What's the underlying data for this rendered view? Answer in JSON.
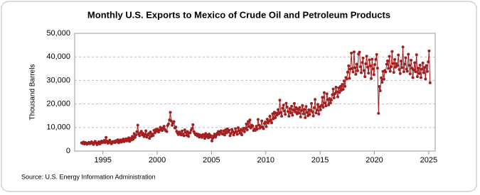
{
  "chart_data": {
    "type": "line",
    "title": "Monthly U.S. Exports to Mexico of Crude Oil and Petroleum Products",
    "y_label": "Thousand Barrels",
    "source": "Source: U.S. Energy Information Administration",
    "color": "#a31f1f",
    "grid": true,
    "xlim": [
      1992.4,
      2025.6
    ],
    "xticks": [
      1995,
      2000,
      2005,
      2010,
      2015,
      2020,
      2025
    ],
    "ylim": [
      0,
      50000
    ],
    "yticks": [
      0,
      {
        "value": 10000,
        "label": "10,000"
      },
      {
        "value": 20000,
        "label": "20,000"
      },
      {
        "value": 30000,
        "label": "30,000"
      },
      {
        "value": 40000,
        "label": "40,000"
      },
      {
        "value": 50000,
        "label": "50,000"
      }
    ],
    "x": [
      1993.04,
      1993.13,
      1993.21,
      1993.29,
      1993.38,
      1993.46,
      1993.54,
      1993.63,
      1993.71,
      1993.79,
      1993.88,
      1993.96,
      1994.04,
      1994.13,
      1994.21,
      1994.29,
      1994.38,
      1994.46,
      1994.54,
      1994.63,
      1994.71,
      1994.79,
      1994.88,
      1994.96,
      1995.04,
      1995.13,
      1995.21,
      1995.29,
      1995.38,
      1995.46,
      1995.54,
      1995.63,
      1995.71,
      1995.79,
      1995.88,
      1995.96,
      1996.04,
      1996.13,
      1996.21,
      1996.29,
      1996.38,
      1996.46,
      1996.54,
      1996.63,
      1996.71,
      1996.79,
      1996.88,
      1996.96,
      1997.04,
      1997.13,
      1997.21,
      1997.29,
      1997.38,
      1997.46,
      1997.54,
      1997.63,
      1997.71,
      1997.79,
      1997.88,
      1997.96,
      1998.04,
      1998.13,
      1998.21,
      1998.29,
      1998.38,
      1998.46,
      1998.54,
      1998.63,
      1998.71,
      1998.79,
      1998.88,
      1998.96,
      1999.04,
      1999.13,
      1999.21,
      1999.29,
      1999.38,
      1999.46,
      1999.54,
      1999.63,
      1999.71,
      1999.79,
      1999.88,
      1999.96,
      2000.04,
      2000.13,
      2000.21,
      2000.29,
      2000.38,
      2000.46,
      2000.54,
      2000.63,
      2000.71,
      2000.79,
      2000.88,
      2000.96,
      2001.04,
      2001.13,
      2001.21,
      2001.29,
      2001.38,
      2001.46,
      2001.54,
      2001.63,
      2001.71,
      2001.79,
      2001.88,
      2001.96,
      2002.04,
      2002.13,
      2002.21,
      2002.29,
      2002.38,
      2002.46,
      2002.54,
      2002.63,
      2002.71,
      2002.79,
      2002.88,
      2002.96,
      2003.04,
      2003.13,
      2003.21,
      2003.29,
      2003.38,
      2003.46,
      2003.54,
      2003.63,
      2003.71,
      2003.79,
      2003.88,
      2003.96,
      2004.04,
      2004.13,
      2004.21,
      2004.29,
      2004.38,
      2004.46,
      2004.54,
      2004.63,
      2004.71,
      2004.79,
      2004.88,
      2004.96,
      2005.04,
      2005.13,
      2005.21,
      2005.29,
      2005.38,
      2005.46,
      2005.54,
      2005.63,
      2005.71,
      2005.79,
      2005.88,
      2005.96,
      2006.04,
      2006.13,
      2006.21,
      2006.29,
      2006.38,
      2006.46,
      2006.54,
      2006.63,
      2006.71,
      2006.79,
      2006.88,
      2006.96,
      2007.04,
      2007.13,
      2007.21,
      2007.29,
      2007.38,
      2007.46,
      2007.54,
      2007.63,
      2007.71,
      2007.79,
      2007.88,
      2007.96,
      2008.04,
      2008.13,
      2008.21,
      2008.29,
      2008.38,
      2008.46,
      2008.54,
      2008.63,
      2008.71,
      2008.79,
      2008.88,
      2008.96,
      2009.04,
      2009.13,
      2009.21,
      2009.29,
      2009.38,
      2009.46,
      2009.54,
      2009.63,
      2009.71,
      2009.79,
      2009.88,
      2009.96,
      2010.04,
      2010.13,
      2010.21,
      2010.29,
      2010.38,
      2010.46,
      2010.54,
      2010.63,
      2010.71,
      2010.79,
      2010.88,
      2010.96,
      2011.04,
      2011.13,
      2011.21,
      2011.29,
      2011.38,
      2011.46,
      2011.54,
      2011.63,
      2011.71,
      2011.79,
      2011.88,
      2011.96,
      2012.04,
      2012.13,
      2012.21,
      2012.29,
      2012.38,
      2012.46,
      2012.54,
      2012.63,
      2012.71,
      2012.79,
      2012.88,
      2012.96,
      2013.04,
      2013.13,
      2013.21,
      2013.29,
      2013.38,
      2013.46,
      2013.54,
      2013.63,
      2013.71,
      2013.79,
      2013.88,
      2013.96,
      2014.04,
      2014.13,
      2014.21,
      2014.29,
      2014.38,
      2014.46,
      2014.54,
      2014.63,
      2014.71,
      2014.79,
      2014.88,
      2014.96,
      2015.04,
      2015.13,
      2015.21,
      2015.29,
      2015.38,
      2015.46,
      2015.54,
      2015.63,
      2015.71,
      2015.79,
      2015.88,
      2015.96,
      2016.04,
      2016.13,
      2016.21,
      2016.29,
      2016.38,
      2016.46,
      2016.54,
      2016.63,
      2016.71,
      2016.79,
      2016.88,
      2016.96,
      2017.04,
      2017.13,
      2017.21,
      2017.29,
      2017.38,
      2017.46,
      2017.54,
      2017.63,
      2017.71,
      2017.79,
      2017.88,
      2017.96,
      2018.04,
      2018.13,
      2018.21,
      2018.29,
      2018.38,
      2018.46,
      2018.54,
      2018.63,
      2018.71,
      2018.79,
      2018.88,
      2018.96,
      2019.04,
      2019.13,
      2019.21,
      2019.29,
      2019.38,
      2019.46,
      2019.54,
      2019.63,
      2019.71,
      2019.79,
      2019.88,
      2019.96,
      2020.04,
      2020.13,
      2020.21,
      2020.29,
      2020.38,
      2020.46,
      2020.54,
      2020.63,
      2020.71,
      2020.79,
      2020.88,
      2020.96,
      2021.04,
      2021.13,
      2021.21,
      2021.29,
      2021.38,
      2021.46,
      2021.54,
      2021.63,
      2021.71,
      2021.79,
      2021.88,
      2021.96,
      2022.04,
      2022.13,
      2022.21,
      2022.29,
      2022.38,
      2022.46,
      2022.54,
      2022.63,
      2022.71,
      2022.79,
      2022.88,
      2022.96,
      2023.04,
      2023.13,
      2023.21,
      2023.29,
      2023.38,
      2023.46,
      2023.54,
      2023.63,
      2023.71,
      2023.79,
      2023.88,
      2023.96,
      2024.04,
      2024.13,
      2024.21,
      2024.29,
      2024.38,
      2024.46,
      2024.54,
      2024.63,
      2024.71,
      2024.79,
      2024.88,
      2024.96,
      2025.04,
      2025.13
    ],
    "values": [
      3500,
      3200,
      3800,
      3000,
      3600,
      3400,
      2900,
      3300,
      3700,
      3100,
      3500,
      3900,
      3200,
      2800,
      3600,
      4100,
      3300,
      2700,
      3500,
      3900,
      3000,
      3400,
      4200,
      3600,
      3800,
      4500,
      3600,
      5800,
      4200,
      3300,
      3900,
      4600,
      3500,
      3100,
      4000,
      3700,
      4100,
      3600,
      4400,
      3900,
      4800,
      3500,
      4200,
      4700,
      3800,
      4300,
      5100,
      4000,
      4500,
      5200,
      4300,
      4900,
      5600,
      4100,
      5300,
      4700,
      6200,
      5000,
      7400,
      5800,
      6800,
      8200,
      11000,
      7200,
      6500,
      7800,
      8400,
      6900,
      7500,
      6100,
      7000,
      8600,
      5900,
      6800,
      7400,
      5400,
      8100,
      6300,
      7200,
      6600,
      8800,
      7700,
      9200,
      8400,
      9300,
      8100,
      8800,
      10100,
      9500,
      8700,
      9800,
      10500,
      9200,
      8600,
      8300,
      10800,
      11500,
      13200,
      16400,
      12800,
      10900,
      11900,
      12500,
      9800,
      10200,
      8400,
      7600,
      7000,
      8100,
      7400,
      6800,
      8500,
      7200,
      6500,
      9000,
      7900,
      6700,
      8300,
      6200,
      7600,
      7800,
      8900,
      9600,
      11200,
      8200,
      7500,
      6900,
      7300,
      6400,
      7100,
      5900,
      6800,
      6300,
      5800,
      7000,
      6600,
      5400,
      7400,
      6100,
      6900,
      5600,
      7200,
      6000,
      6500,
      4300,
      5500,
      6400,
      7200,
      5900,
      6800,
      7600,
      8300,
      7000,
      8100,
      8600,
      7400,
      7200,
      8500,
      6800,
      9000,
      7700,
      9400,
      8100,
      8800,
      6500,
      7500,
      9200,
      8300,
      6800,
      7800,
      9500,
      8200,
      7100,
      9900,
      8600,
      7600,
      9200,
      6900,
      8800,
      9700,
      8200,
      9600,
      11500,
      9000,
      12500,
      10400,
      13200,
      9800,
      11000,
      10600,
      8700,
      9300,
      8800,
      10500,
      9300,
      13400,
      11000,
      9700,
      10300,
      12800,
      10100,
      9500,
      11700,
      12300,
      10400,
      13500,
      11900,
      12600,
      14800,
      13100,
      12000,
      15800,
      13700,
      16500,
      14200,
      16100,
      15300,
      17600,
      15900,
      21600,
      16400,
      14800,
      18200,
      19500,
      17000,
      15600,
      20300,
      18700,
      16800,
      14800,
      18000,
      16200,
      19000,
      15200,
      17500,
      20200,
      16600,
      18500,
      15800,
      17900,
      16100,
      18500,
      14500,
      17200,
      19300,
      15800,
      17700,
      14200,
      18900,
      16400,
      15000,
      17500,
      15500,
      17300,
      20200,
      16600,
      14900,
      18400,
      21900,
      16200,
      17400,
      19800,
      15700,
      18800,
      17500,
      19400,
      22800,
      18600,
      24800,
      20400,
      19200,
      24300,
      21800,
      19600,
      22300,
      20500,
      21700,
      23900,
      26300,
      22600,
      24400,
      27100,
      25200,
      23000,
      26800,
      24900,
      27400,
      25800,
      28300,
      26200,
      29800,
      27500,
      31200,
      30600,
      33500,
      36200,
      30900,
      34800,
      41600,
      35100,
      33600,
      42100,
      35400,
      32600,
      36900,
      34100,
      41200,
      42000,
      35800,
      33300,
      37600,
      39500,
      34200,
      31600,
      37100,
      40300,
      35600,
      33100,
      38700,
      36200,
      30800,
      39000,
      34900,
      32500,
      36700,
      38900,
      41000,
      35200,
      16000,
      27400,
      25600,
      31100,
      29200,
      33800,
      30500,
      34200,
      33600,
      36900,
      38300,
      35100,
      40200,
      33900,
      35800,
      42300,
      37200,
      33400,
      38900,
      35600,
      37100,
      36300,
      40800,
      34600,
      32900,
      38200,
      35400,
      44200,
      33700,
      36900,
      39600,
      34800,
      33900,
      41100,
      36400,
      32800,
      38600,
      35200,
      31200,
      34500,
      37500,
      33700,
      40900,
      31600,
      35200,
      32900,
      36500,
      31200,
      34800,
      37400,
      33300,
      35500,
      30600,
      36300,
      33800,
      37900,
      42500,
      29000
    ]
  }
}
